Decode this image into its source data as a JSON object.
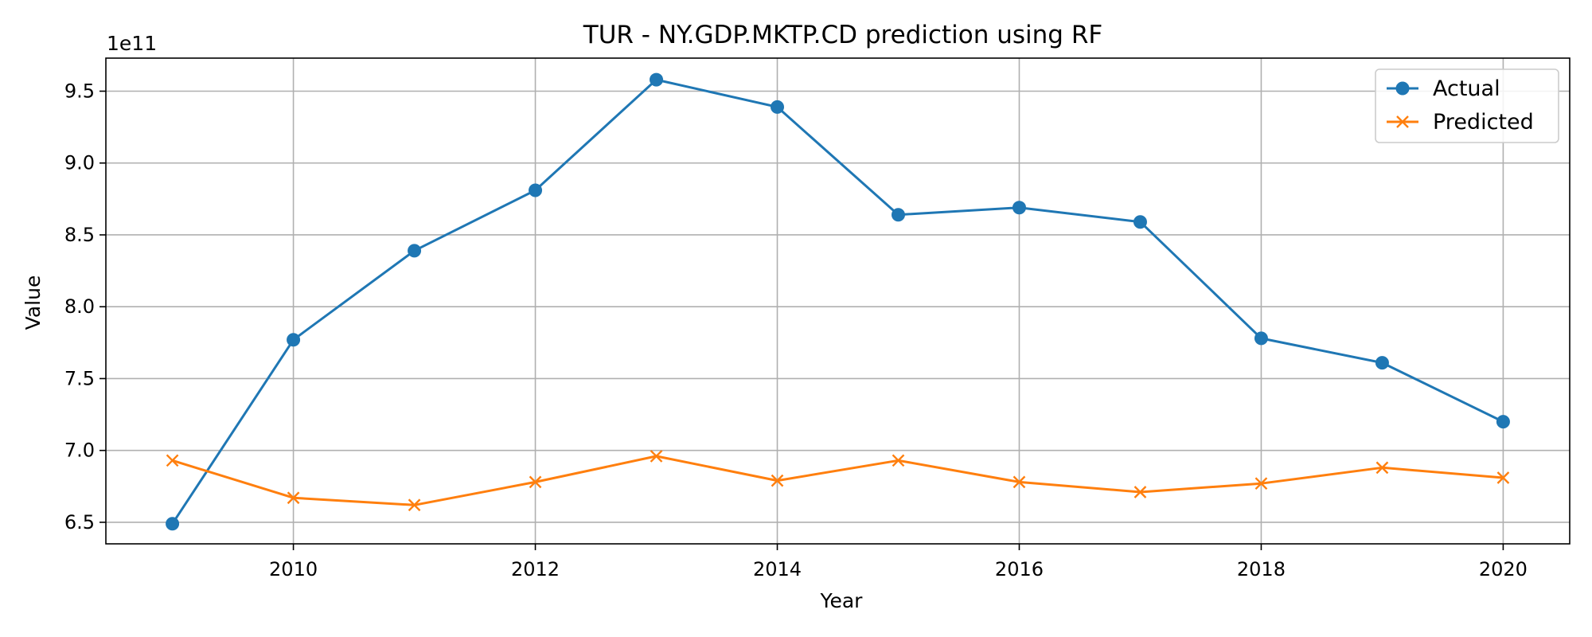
{
  "chart_data": {
    "type": "line",
    "title": "TUR - NY.GDP.MKTP.CD prediction using RF",
    "xlabel": "Year",
    "ylabel": "Value",
    "y_offset_label": "1e11",
    "y_scale_multiplier": 100000000000.0,
    "xlim": [
      2008.45,
      2020.55
    ],
    "ylim": [
      6.35,
      9.73
    ],
    "x_ticks": [
      2010,
      2012,
      2014,
      2016,
      2018,
      2020
    ],
    "y_ticks": [
      6.5,
      7.0,
      7.5,
      8.0,
      8.5,
      9.0,
      9.5
    ],
    "y_tick_labels": [
      "6.5",
      "7.0",
      "7.5",
      "8.0",
      "8.5",
      "9.0",
      "9.5"
    ],
    "grid": true,
    "legend_position": "top-right",
    "x": [
      2009,
      2010,
      2011,
      2012,
      2013,
      2014,
      2015,
      2016,
      2017,
      2018,
      2019,
      2020
    ],
    "series": [
      {
        "name": "Actual",
        "color": "#1f77b4",
        "marker": "circle",
        "values": [
          6.49,
          7.77,
          8.39,
          8.81,
          9.58,
          9.39,
          8.64,
          8.69,
          8.59,
          7.78,
          7.61,
          7.2
        ]
      },
      {
        "name": "Predicted",
        "color": "#ff7f0e",
        "marker": "x",
        "values": [
          6.93,
          6.67,
          6.62,
          6.78,
          6.96,
          6.79,
          6.93,
          6.78,
          6.71,
          6.77,
          6.88,
          6.81
        ]
      }
    ]
  }
}
